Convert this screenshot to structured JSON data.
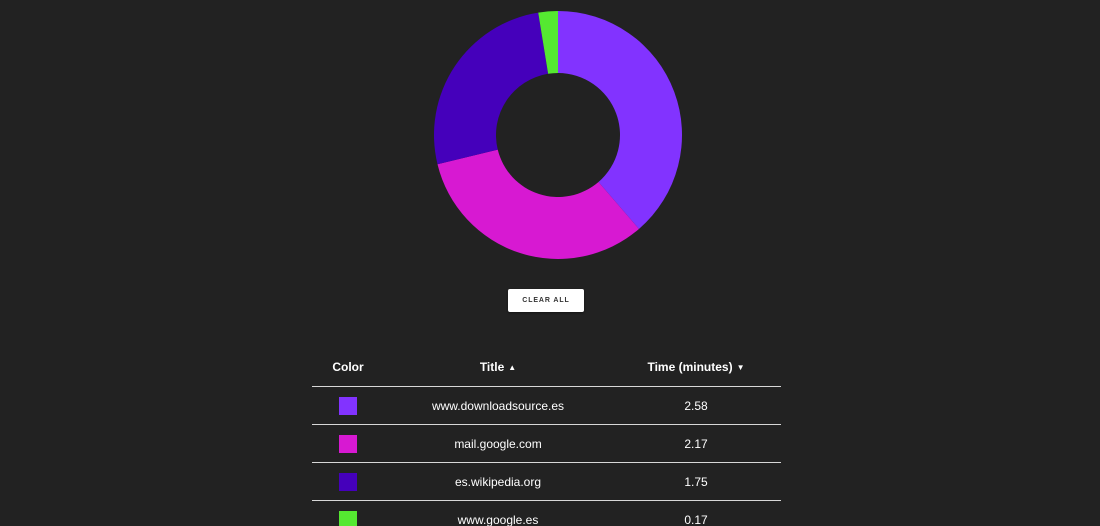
{
  "chart_data": {
    "type": "pie",
    "style": "donut",
    "title": "",
    "categories": [
      "www.downloadsource.es",
      "mail.google.com",
      "es.wikipedia.org",
      "www.google.es"
    ],
    "values": [
      2.58,
      2.17,
      1.75,
      0.17
    ],
    "colors": [
      "#8233ff",
      "#d719d2",
      "#4500bb",
      "#55e831"
    ],
    "legend": "none"
  },
  "controls": {
    "clear_all_label": "CLEAR ALL"
  },
  "table": {
    "headers": {
      "color": "Color",
      "title": "Title",
      "title_sort_arrow": "▲",
      "time": "Time (minutes)",
      "time_sort_arrow": "▼"
    },
    "rows": [
      {
        "color": "#8233ff",
        "title": "www.downloadsource.es",
        "time": "2.58"
      },
      {
        "color": "#d719d2",
        "title": "mail.google.com",
        "time": "2.17"
      },
      {
        "color": "#4500bb",
        "title": "es.wikipedia.org",
        "time": "1.75"
      },
      {
        "color": "#55e831",
        "title": "www.google.es",
        "time": "0.17"
      }
    ]
  }
}
